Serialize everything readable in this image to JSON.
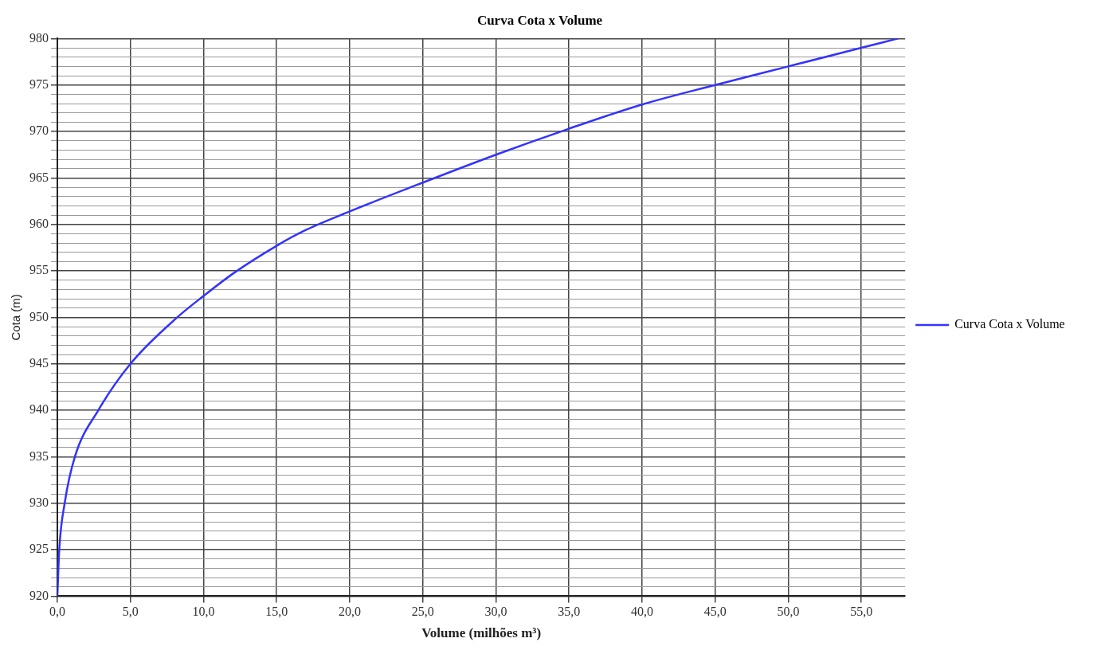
{
  "chart_data": {
    "type": "line",
    "title": "Curva Cota x Volume",
    "xlabel": "Volume (milhões m³)",
    "ylabel": "Cota (m)",
    "x": [
      0,
      0.13,
      0.5,
      1.2,
      2.8,
      5.0,
      8.2,
      10.0,
      12.1,
      15.0,
      17.0,
      20.0,
      25.0,
      30.0,
      35.0,
      40.0,
      45.0,
      50.0,
      55.0,
      57.5
    ],
    "series": [
      {
        "name": "Curva Cota x Volume",
        "color": "#3333ff",
        "values": [
          920,
          925,
          930,
          935,
          940,
          945,
          950,
          952.3,
          954.8,
          957.7,
          959.4,
          961.4,
          964.5,
          967.5,
          970.3,
          972.9,
          975,
          977,
          979,
          980
        ]
      }
    ],
    "xlim": [
      0,
      58
    ],
    "xticks": [
      {
        "value": 0,
        "label": "0,0"
      },
      {
        "value": 5,
        "label": "5,0"
      },
      {
        "value": 10,
        "label": "10,0"
      },
      {
        "value": 15,
        "label": "15,0"
      },
      {
        "value": 20,
        "label": "20,0"
      },
      {
        "value": 25,
        "label": "25,0"
      },
      {
        "value": 30,
        "label": "30,0"
      },
      {
        "value": 35,
        "label": "35,0"
      },
      {
        "value": 40,
        "label": "40,0"
      },
      {
        "value": 45,
        "label": "45,0"
      },
      {
        "value": 50,
        "label": "50,0"
      },
      {
        "value": 55,
        "label": "55,0"
      }
    ],
    "ylim": [
      920,
      980
    ],
    "yticks": [
      920,
      {
        "value": 921,
        "label": null
      },
      {
        "value": 922,
        "label": null
      },
      {
        "value": 923,
        "label": null
      },
      {
        "value": 924,
        "label": null
      },
      925,
      {
        "value": 926,
        "label": null
      },
      {
        "value": 927,
        "label": null
      },
      {
        "value": 928,
        "label": null
      },
      {
        "value": 929,
        "label": null
      },
      930,
      {
        "value": 931,
        "label": null
      },
      {
        "value": 932,
        "label": null
      },
      {
        "value": 933,
        "label": null
      },
      {
        "value": 934,
        "label": null
      },
      935,
      {
        "value": 936,
        "label": null
      },
      {
        "value": 937,
        "label": null
      },
      {
        "value": 938,
        "label": null
      },
      {
        "value": 939,
        "label": null
      },
      940,
      {
        "value": 941,
        "label": null
      },
      {
        "value": 942,
        "label": null
      },
      {
        "value": 943,
        "label": null
      },
      {
        "value": 944,
        "label": null
      },
      945,
      {
        "value": 946,
        "label": null
      },
      {
        "value": 947,
        "label": null
      },
      {
        "value": 948,
        "label": null
      },
      {
        "value": 949,
        "label": null
      },
      950,
      {
        "value": 951,
        "label": null
      },
      {
        "value": 952,
        "label": null
      },
      {
        "value": 953,
        "label": null
      },
      {
        "value": 954,
        "label": null
      },
      955,
      {
        "value": 956,
        "label": null
      },
      {
        "value": 957,
        "label": null
      },
      {
        "value": 958,
        "label": null
      },
      {
        "value": 959,
        "label": null
      },
      960,
      {
        "value": 961,
        "label": null
      },
      {
        "value": 962,
        "label": null
      },
      {
        "value": 963,
        "label": null
      },
      {
        "value": 964,
        "label": null
      },
      965,
      {
        "value": 966,
        "label": null
      },
      {
        "value": 967,
        "label": null
      },
      {
        "value": 968,
        "label": null
      },
      {
        "value": 969,
        "label": null
      },
      970,
      {
        "value": 971,
        "label": null
      },
      {
        "value": 972,
        "label": null
      },
      {
        "value": 973,
        "label": null
      },
      {
        "value": 974,
        "label": null
      },
      975,
      {
        "value": 976,
        "label": null
      },
      {
        "value": 977,
        "label": null
      },
      {
        "value": 978,
        "label": null
      },
      {
        "value": 979,
        "label": null
      },
      980
    ],
    "grid": true,
    "legend": "right",
    "marker": "none",
    "line_style": "solid"
  }
}
